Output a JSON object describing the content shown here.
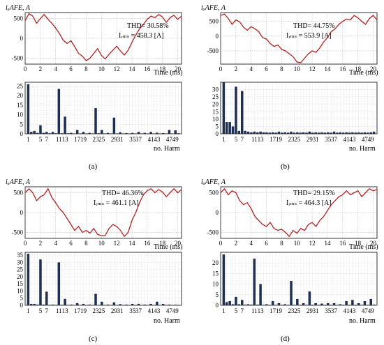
{
  "figure": {
    "panels": [
      {
        "caption": "(a)",
        "time_plot": {
          "ylabel": "iₐAFE, A",
          "thd": "THD= 30.58%",
          "irms": "Iᵣₘₛ = 458.3 [A]"
        },
        "harm_plot": {
          "xlabel": "no. Harm"
        }
      },
      {
        "caption": "(b)",
        "time_plot": {
          "ylabel": "iₐAFE, A",
          "thd": "THD= 44.75%",
          "irms": "Iᵣₘₛ = 553.9 [A]"
        },
        "harm_plot": {
          "xlabel": "no. Harm"
        }
      },
      {
        "caption": "(c)",
        "time_plot": {
          "ylabel": "iₐAFE, A",
          "thd": "THD= 46.36%",
          "irms": "Iᵣₘₛ = 461.1 [A]"
        },
        "harm_plot": {
          "xlabel": "no. Harm"
        }
      },
      {
        "caption": "(d)",
        "time_plot": {
          "ylabel": "iₐAFE, A",
          "thd": "THD= 29.15%",
          "irms": "Iᵣₘₛ = 464.3 [A]"
        },
        "harm_plot": {
          "xlabel": "no. Harm"
        }
      }
    ]
  },
  "chart_data": [
    {
      "type": "line",
      "panel": "a",
      "xlabel": "Time (ms)",
      "ylabel": "iₐAFE, A",
      "xlim": [
        0,
        20.5
      ],
      "ylim": [
        -650,
        650
      ],
      "xticks": [
        0,
        2,
        4,
        6,
        8,
        10,
        12,
        14,
        16,
        18,
        20
      ],
      "yticks": [
        -500,
        0,
        500
      ],
      "line_color": "#b22222",
      "x": [
        0,
        0.5,
        1,
        1.5,
        2,
        2.5,
        3,
        3.5,
        4,
        4.5,
        5,
        5.5,
        6,
        6.5,
        7,
        7.5,
        8,
        8.5,
        9,
        9.5,
        10,
        10.5,
        11,
        11.5,
        12,
        12.5,
        13,
        13.5,
        14,
        14.5,
        15,
        15.5,
        16,
        16.5,
        17,
        17.5,
        18,
        18.5,
        19,
        19.5,
        20,
        20.5
      ],
      "y": [
        450,
        620,
        560,
        380,
        500,
        600,
        480,
        380,
        260,
        120,
        -50,
        -130,
        -60,
        -210,
        -380,
        -450,
        -560,
        -500,
        -380,
        -260,
        -430,
        -520,
        -400,
        -300,
        -200,
        -320,
        -420,
        -300,
        -100,
        80,
        240,
        350,
        480,
        560,
        520,
        600,
        540,
        400,
        520,
        580,
        480,
        560
      ]
    },
    {
      "type": "bar",
      "panel": "a",
      "xlabel": "no. Harm",
      "ylim": [
        0,
        27
      ],
      "yticks": [
        0,
        5,
        10,
        15,
        20,
        25
      ],
      "xticks": [
        1,
        5,
        7,
        11,
        13,
        17,
        19,
        23,
        25,
        29,
        31,
        35,
        37,
        41,
        43,
        47,
        49
      ],
      "bar_color": "#1f2f4f",
      "x": [
        1,
        2,
        3,
        4,
        5,
        6,
        7,
        8,
        9,
        10,
        11,
        12,
        13,
        14,
        15,
        16,
        17,
        18,
        19,
        20,
        21,
        22,
        23,
        24,
        25,
        26,
        27,
        28,
        29,
        30,
        31,
        32,
        33,
        34,
        35,
        36,
        37,
        38,
        39,
        40,
        41,
        42,
        43,
        44,
        45,
        46,
        47,
        48,
        49,
        50
      ],
      "values": [
        26,
        1,
        1.5,
        0.5,
        4.5,
        0.5,
        1,
        0.3,
        1,
        0.3,
        23.5,
        0.3,
        9,
        0.3,
        0.5,
        0.2,
        2,
        0.2,
        1,
        0.2,
        0.5,
        0.2,
        13.5,
        0.3,
        2,
        0.2,
        0.5,
        0.2,
        8.5,
        0.2,
        0.8,
        0.2,
        0.4,
        0.2,
        0.5,
        0.2,
        1,
        0.2,
        0.5,
        0.2,
        1,
        0.2,
        0.6,
        0.2,
        0.4,
        0.2,
        2,
        0.2,
        1.8,
        0.3
      ]
    },
    {
      "type": "line",
      "panel": "b",
      "xlabel": "Time (ms)",
      "ylabel": "iₐAFE, A",
      "xlim": [
        0,
        20.5
      ],
      "ylim": [
        -950,
        800
      ],
      "xticks": [
        0,
        2,
        4,
        6,
        8,
        10,
        12,
        14,
        16,
        18,
        20
      ],
      "yticks": [
        -500,
        0,
        500
      ],
      "line_color": "#b22222",
      "x": [
        0,
        0.5,
        1,
        1.5,
        2,
        2.5,
        3,
        3.5,
        4,
        4.5,
        5,
        5.5,
        6,
        6.5,
        7,
        7.5,
        8,
        8.5,
        9,
        9.5,
        10,
        10.5,
        11,
        11.5,
        12,
        12.5,
        13,
        13.5,
        14,
        14.5,
        15,
        15.5,
        16,
        16.5,
        17,
        17.5,
        18,
        18.5,
        19,
        19.5,
        20,
        20.5
      ],
      "y": [
        700,
        750,
        600,
        400,
        550,
        480,
        300,
        200,
        320,
        250,
        150,
        -50,
        -100,
        -250,
        -350,
        -300,
        -450,
        -500,
        -600,
        -700,
        -880,
        -900,
        -750,
        -600,
        -500,
        -550,
        -400,
        -200,
        -50,
        150,
        250,
        400,
        500,
        580,
        550,
        700,
        620,
        500,
        400,
        600,
        700,
        550
      ]
    },
    {
      "type": "bar",
      "panel": "b",
      "xlabel": "no. Harm",
      "ylim": [
        0,
        35
      ],
      "yticks": [
        0,
        5,
        10,
        15,
        20,
        25,
        30
      ],
      "xticks": [
        1,
        5,
        7,
        11,
        13,
        17,
        19,
        23,
        25,
        29,
        31,
        35,
        37,
        41,
        43,
        47,
        49
      ],
      "bar_color": "#1f2f4f",
      "x": [
        1,
        2,
        3,
        4,
        5,
        6,
        7,
        8,
        9,
        10,
        11,
        12,
        13,
        14,
        15,
        16,
        17,
        18,
        19,
        20,
        21,
        22,
        23,
        24,
        25,
        26,
        27,
        28,
        29,
        30,
        31,
        32,
        33,
        34,
        35,
        36,
        37,
        38,
        39,
        40,
        41,
        42,
        43,
        44,
        45,
        46,
        47,
        48,
        49,
        50
      ],
      "values": [
        35,
        8,
        8,
        5,
        32,
        2,
        29,
        2,
        1.5,
        1,
        1.5,
        1,
        1.5,
        1,
        1,
        0.8,
        1,
        0.8,
        1.5,
        0.8,
        1,
        0.8,
        1.5,
        0.8,
        1,
        0.8,
        1,
        0.8,
        1.5,
        0.8,
        1,
        0.8,
        1,
        0.8,
        1,
        0.8,
        1.5,
        0.8,
        1,
        0.8,
        1,
        0.8,
        1,
        0.8,
        1,
        0.8,
        1,
        0.8,
        1,
        1.5
      ]
    },
    {
      "type": "line",
      "panel": "c",
      "xlabel": "Time (ms)",
      "ylabel": "iₐAFE, A",
      "xlim": [
        0,
        20.5
      ],
      "ylim": [
        -650,
        650
      ],
      "xticks": [
        0,
        2,
        4,
        6,
        8,
        10,
        12,
        14,
        16,
        18,
        20
      ],
      "yticks": [
        -500,
        0,
        500
      ],
      "line_color": "#b22222",
      "x": [
        0,
        0.5,
        1,
        1.5,
        2,
        2.5,
        3,
        3.5,
        4,
        4.5,
        5,
        5.5,
        6,
        6.5,
        7,
        7.5,
        8,
        8.5,
        9,
        9.5,
        10,
        10.5,
        11,
        11.5,
        12,
        12.5,
        13,
        13.5,
        14,
        14.5,
        15,
        15.5,
        16,
        16.5,
        17,
        17.5,
        18,
        18.5,
        19,
        19.5,
        20,
        20.5
      ],
      "y": [
        500,
        600,
        500,
        300,
        400,
        450,
        600,
        380,
        250,
        100,
        0,
        -150,
        -300,
        -450,
        -350,
        -500,
        -450,
        -520,
        -400,
        -550,
        -580,
        -580,
        -400,
        -300,
        -350,
        -450,
        -600,
        -500,
        -200,
        0,
        250,
        450,
        550,
        600,
        500,
        580,
        520,
        400,
        500,
        600,
        500,
        580
      ]
    },
    {
      "type": "bar",
      "panel": "c",
      "xlabel": "no. Harm",
      "ylim": [
        0,
        37
      ],
      "yticks": [
        0,
        5,
        10,
        15,
        20,
        25,
        30,
        35
      ],
      "xticks": [
        1,
        5,
        7,
        11,
        13,
        17,
        19,
        23,
        25,
        29,
        31,
        35,
        37,
        41,
        43,
        47,
        49
      ],
      "bar_color": "#1f2f4f",
      "x": [
        1,
        2,
        3,
        4,
        5,
        6,
        7,
        8,
        9,
        10,
        11,
        12,
        13,
        14,
        15,
        16,
        17,
        18,
        19,
        20,
        21,
        22,
        23,
        24,
        25,
        26,
        27,
        28,
        29,
        30,
        31,
        32,
        33,
        34,
        35,
        36,
        37,
        38,
        39,
        40,
        41,
        42,
        43,
        44,
        45,
        46,
        47,
        48,
        49,
        50
      ],
      "values": [
        36,
        1,
        1,
        0.5,
        32,
        0.5,
        9.5,
        0.3,
        0.5,
        0.3,
        30,
        0.3,
        4.5,
        0.2,
        0.5,
        0.2,
        1.5,
        0.2,
        1,
        0.2,
        0.5,
        0.2,
        8,
        0.2,
        2.5,
        0.2,
        0.5,
        0.2,
        2,
        0.2,
        0.8,
        0.2,
        0.5,
        0.2,
        1,
        0.2,
        1,
        0.2,
        0.5,
        0.2,
        1,
        0.2,
        2.5,
        0.2,
        1,
        0.2,
        0.5,
        0.2,
        0.4,
        0.2
      ]
    },
    {
      "type": "line",
      "panel": "d",
      "xlabel": "Time (ms)",
      "ylabel": "iₐAFE, A",
      "xlim": [
        0,
        20.5
      ],
      "ylim": [
        -650,
        650
      ],
      "xticks": [
        0,
        2,
        4,
        6,
        8,
        10,
        12,
        14,
        16,
        18,
        20
      ],
      "yticks": [
        -500,
        0,
        500
      ],
      "line_color": "#b22222",
      "x": [
        0,
        0.5,
        1,
        1.5,
        2,
        2.5,
        3,
        3.5,
        4,
        4.5,
        5,
        5.5,
        6,
        6.5,
        7,
        7.5,
        8,
        8.5,
        9,
        9.5,
        10,
        10.5,
        11,
        11.5,
        12,
        12.5,
        13,
        13.5,
        14,
        14.5,
        15,
        15.5,
        16,
        16.5,
        17,
        17.5,
        18,
        18.5,
        19,
        19.5,
        20,
        20.5
      ],
      "y": [
        500,
        600,
        450,
        550,
        500,
        300,
        200,
        250,
        100,
        -100,
        -200,
        -300,
        -350,
        -250,
        -400,
        -450,
        -420,
        -500,
        -600,
        -450,
        -520,
        -400,
        -450,
        -300,
        -250,
        -350,
        -200,
        -100,
        50,
        200,
        300,
        400,
        450,
        550,
        450,
        500,
        550,
        400,
        500,
        600,
        550,
        580
      ]
    },
    {
      "type": "bar",
      "panel": "d",
      "xlabel": "no. Harm",
      "ylim": [
        0,
        25
      ],
      "yticks": [
        0,
        5,
        10,
        15,
        20
      ],
      "xticks": [
        1,
        5,
        7,
        11,
        13,
        17,
        19,
        23,
        25,
        29,
        31,
        35,
        37,
        41,
        43,
        47,
        49
      ],
      "bar_color": "#1f2f4f",
      "x": [
        1,
        2,
        3,
        4,
        5,
        6,
        7,
        8,
        9,
        10,
        11,
        12,
        13,
        14,
        15,
        16,
        17,
        18,
        19,
        20,
        21,
        22,
        23,
        24,
        25,
        26,
        27,
        28,
        29,
        30,
        31,
        32,
        33,
        34,
        35,
        36,
        37,
        38,
        39,
        40,
        41,
        42,
        43,
        44,
        45,
        46,
        47,
        48,
        49,
        50
      ],
      "values": [
        24,
        1.5,
        2,
        0.5,
        4,
        0.5,
        2.5,
        0.3,
        0.5,
        0.3,
        22,
        0.3,
        10,
        0.2,
        0.5,
        0.2,
        2,
        0.2,
        1,
        0.2,
        0.5,
        0.2,
        11.5,
        0.2,
        3,
        0.2,
        1,
        0.2,
        6.5,
        0.2,
        1,
        0.2,
        0.8,
        0.2,
        1,
        0.2,
        1,
        0.2,
        0.5,
        0.2,
        2,
        0.2,
        2.5,
        0.2,
        1,
        0.2,
        2,
        0.2,
        3,
        0.3
      ]
    }
  ]
}
